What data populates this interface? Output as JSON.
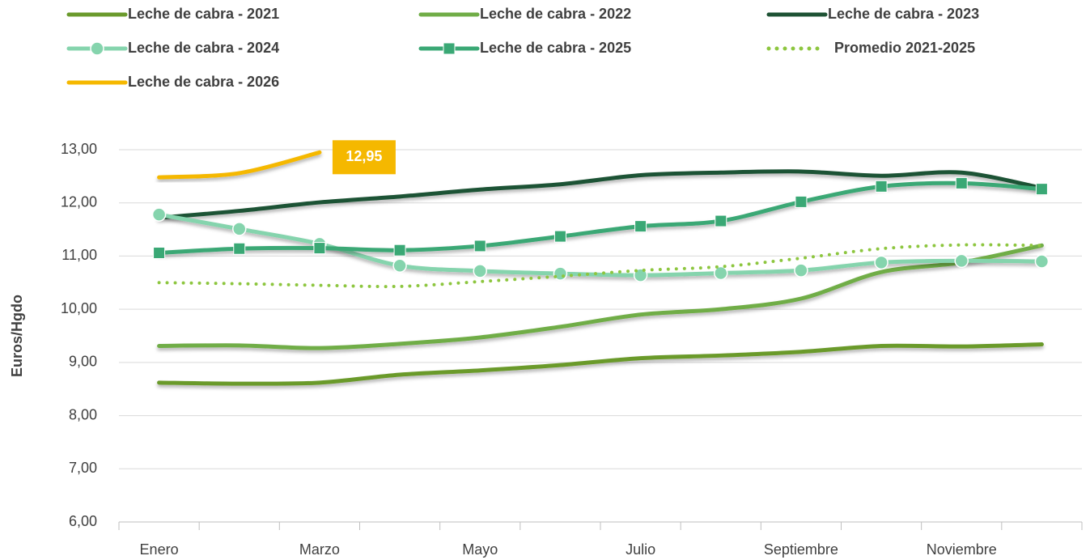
{
  "chart_data": {
    "type": "line",
    "y_label": "Euros/Hgdo",
    "categories": [
      "Enero",
      null,
      "Marzo",
      null,
      "Mayo",
      null,
      "Julio",
      null,
      "Septiembre",
      null,
      "Noviembre",
      null
    ],
    "ylim": [
      6,
      13
    ],
    "yticks": [
      {
        "value": 6,
        "label": "6,00"
      },
      {
        "value": 7,
        "label": "7,00"
      },
      {
        "value": 8,
        "label": "8,00"
      },
      {
        "value": 9,
        "label": "9,00"
      },
      {
        "value": 10,
        "label": "10,00"
      },
      {
        "value": 11,
        "label": "11,00"
      },
      {
        "value": 12,
        "label": "12,00"
      },
      {
        "value": 13,
        "label": "13,00"
      }
    ],
    "grid": true,
    "series": [
      {
        "name": "Leche de cabra - 2021",
        "color": "#6a9a2c",
        "values": [
          8.62,
          8.6,
          8.62,
          8.77,
          8.85,
          8.95,
          9.08,
          9.13,
          9.2,
          9.31,
          9.3,
          9.34
        ]
      },
      {
        "name": "Leche de cabra - 2022",
        "color": "#70ad47",
        "values": [
          9.31,
          9.32,
          9.27,
          9.35,
          9.47,
          9.67,
          9.9,
          10.0,
          10.2,
          10.7,
          10.88,
          11.2
        ]
      },
      {
        "name": "Leche de cabra - 2023",
        "color": "#1e5234",
        "values": [
          11.72,
          11.85,
          12.01,
          12.12,
          12.25,
          12.35,
          12.52,
          12.57,
          12.59,
          12.51,
          12.57,
          12.28
        ]
      },
      {
        "name": "Leche de cabra - 2024",
        "color": "#85d4ad",
        "marker": "circle",
        "values": [
          11.78,
          11.51,
          11.23,
          10.82,
          10.72,
          10.67,
          10.64,
          10.68,
          10.73,
          10.88,
          10.91,
          10.9
        ]
      },
      {
        "name": "Leche de cabra - 2025",
        "color": "#3aa875",
        "marker": "square",
        "values": [
          11.06,
          11.14,
          11.15,
          11.11,
          11.19,
          11.37,
          11.56,
          11.66,
          12.02,
          12.31,
          12.37,
          12.26
        ]
      },
      {
        "name": "Promedio 2021-2025",
        "color": "#8dc63f",
        "style": "dotted",
        "values": [
          10.5,
          10.48,
          10.45,
          10.43,
          10.52,
          10.62,
          10.73,
          10.8,
          10.96,
          11.14,
          11.21,
          11.2
        ]
      },
      {
        "name": "Leche de cabra - 2026",
        "color": "#f5b800",
        "values": [
          12.48,
          12.56,
          12.95,
          null,
          null,
          null,
          null,
          null,
          null,
          null,
          null,
          null
        ],
        "value_labels": [
          null,
          null,
          "12,95",
          null,
          null,
          null,
          null,
          null,
          null,
          null,
          null,
          null
        ]
      }
    ]
  }
}
